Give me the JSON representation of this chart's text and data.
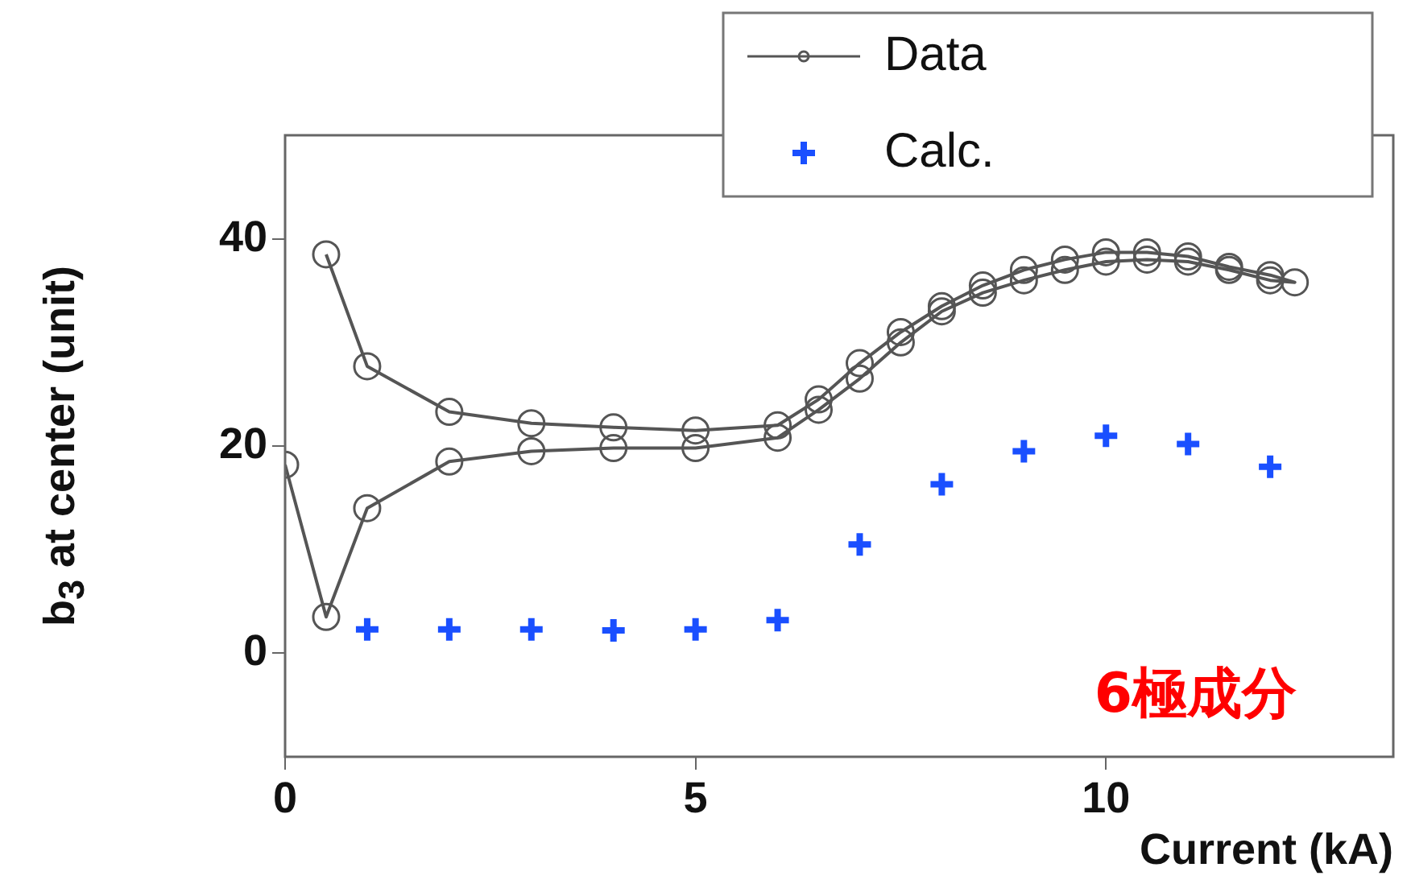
{
  "chart_data": {
    "type": "scatter",
    "xlabel": "Current (kA)",
    "ylabel": "b$_{3}$ at center (unit)",
    "xlim": [
      0,
      13.5
    ],
    "xticks": [
      0,
      5,
      10
    ],
    "ylim": [
      -10,
      50
    ],
    "yticks": [
      0,
      20,
      40
    ],
    "legend": "top right",
    "annotations": [
      "6極成分"
    ],
    "series": [
      {
        "name": "Data",
        "type": "line",
        "color": "#555555",
        "marker": "circle",
        "line_style": "solid",
        "x": [
          0.5,
          1,
          2,
          3,
          4,
          5,
          6,
          6.5,
          7,
          7.5,
          8,
          8.5,
          9,
          9.5,
          10,
          10.5,
          11,
          11.5,
          12,
          12.3,
          12,
          11.5,
          11,
          10.5,
          10,
          9.5,
          9,
          8.5,
          8,
          7.5,
          7,
          6.5,
          6,
          5,
          4,
          3,
          2,
          1,
          0.5,
          0
        ],
        "values": [
          38.5,
          27.7,
          23.3,
          22.2,
          21.8,
          21.5,
          22.0,
          24.5,
          28,
          31,
          33.5,
          35.5,
          37,
          38,
          38.7,
          38.7,
          38.3,
          37.3,
          36.5,
          35.8,
          36,
          37,
          37.8,
          38,
          37.8,
          37,
          36,
          34.8,
          33,
          30,
          26.5,
          23.5,
          20.8,
          19.8,
          19.8,
          19.5,
          18.5,
          14,
          3.5,
          18.2
        ]
      },
      {
        "name": "Calc.",
        "type": "scatter",
        "color": "#1a4fff",
        "marker": "cross",
        "x": [
          1,
          2,
          3,
          4,
          5,
          6,
          7,
          8,
          9,
          10,
          11,
          12
        ],
        "values": [
          2.3,
          2.3,
          2.3,
          2.2,
          2.3,
          3.2,
          10.5,
          16.3,
          19.5,
          21,
          20.2,
          18
        ]
      }
    ]
  }
}
